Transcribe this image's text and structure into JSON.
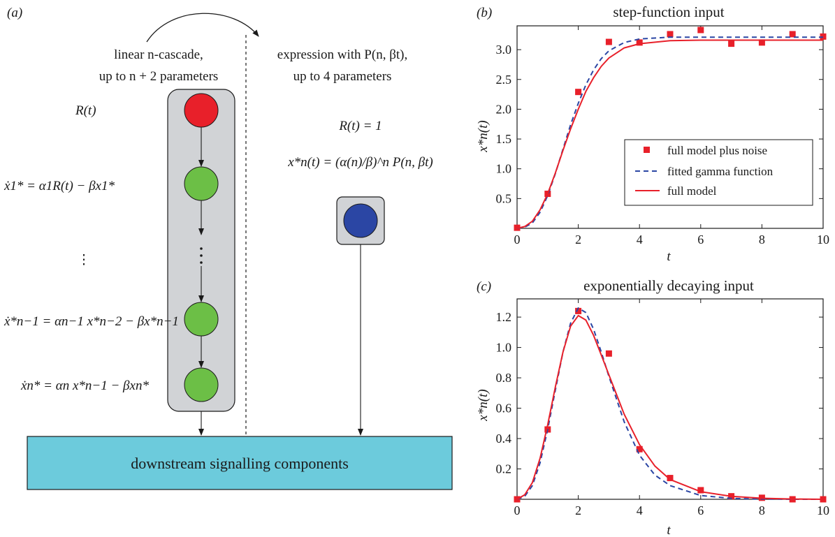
{
  "diagram": {
    "panel_label": "(a)",
    "left_header": [
      "linear n-cascade,",
      "up to n + 2 parameters"
    ],
    "right_header": [
      "expression with P(n, βt),",
      "up to 4 parameters"
    ],
    "input_label": "R(t)",
    "equations": {
      "eq1": "ẋ1* = α1R(t) − βx1*",
      "ellipsis": "⋮",
      "eq_n_minus_1": "ẋ*n−1 = αn−1 x*n−2 − βx*n−1",
      "eq_n": "ẋn* = αn x*n−1 − βxn*"
    },
    "right_equations": {
      "r_of_t": "R(t) = 1",
      "solution": "x*n(t) = (α(n)/β)^n P(n, βt)"
    },
    "downstream_label": "downstream signalling components",
    "colors": {
      "input_node": "#e8202a",
      "cascade_node": "#6cbf46",
      "output_node": "#2b46a4",
      "cascade_box": "#d1d3d6",
      "downstream": "#6ccbdc"
    }
  },
  "chart_data": [
    {
      "panel_label": "(b)",
      "type": "line",
      "title": "step-function input",
      "xlabel": "t",
      "ylabel": "x*n(t)",
      "xlim": [
        0,
        10
      ],
      "ylim": [
        0,
        3.4
      ],
      "xticks": [
        0,
        2,
        4,
        6,
        8,
        10
      ],
      "yticks": [
        0.5,
        1.0,
        1.5,
        2.0,
        2.5,
        3.0
      ],
      "ytick_labels": [
        "0.5",
        "1.0",
        "1.5",
        "2.0",
        "2.5",
        "3.0"
      ],
      "legend_position": "center-right",
      "series": [
        {
          "name": "full model plus noise",
          "style": "markers",
          "color": "#e8202a",
          "x": [
            0,
            1,
            2,
            3,
            4,
            5,
            6,
            7,
            8,
            9,
            10
          ],
          "y": [
            0.01,
            0.58,
            2.29,
            3.13,
            3.12,
            3.26,
            3.33,
            3.1,
            3.12,
            3.26,
            3.22
          ]
        },
        {
          "name": "fitted gamma function",
          "style": "dashed",
          "color": "#2b46a4",
          "x": [
            0,
            0.25,
            0.5,
            0.75,
            1,
            1.25,
            1.5,
            1.75,
            2,
            2.25,
            2.5,
            2.75,
            3,
            3.5,
            4,
            5,
            6,
            7,
            8,
            9,
            10
          ],
          "y": [
            0,
            0.02,
            0.09,
            0.27,
            0.55,
            0.92,
            1.33,
            1.74,
            2.1,
            2.41,
            2.66,
            2.85,
            2.98,
            3.12,
            3.18,
            3.21,
            3.21,
            3.21,
            3.21,
            3.21,
            3.21
          ]
        },
        {
          "name": "full model",
          "style": "solid",
          "color": "#e8202a",
          "x": [
            0,
            0.25,
            0.5,
            0.75,
            1,
            1.25,
            1.5,
            1.75,
            2,
            2.25,
            2.5,
            2.75,
            3,
            3.5,
            4,
            5,
            6,
            7,
            8,
            9,
            10
          ],
          "y": [
            0,
            0.03,
            0.12,
            0.31,
            0.58,
            0.93,
            1.31,
            1.67,
            2.0,
            2.3,
            2.53,
            2.72,
            2.86,
            3.03,
            3.1,
            3.15,
            3.16,
            3.16,
            3.16,
            3.16,
            3.16
          ]
        }
      ]
    },
    {
      "panel_label": "(c)",
      "type": "line",
      "title": "exponentially decaying input",
      "xlabel": "t",
      "ylabel": "x*n(t)",
      "xlim": [
        0,
        10
      ],
      "ylim": [
        0,
        1.32
      ],
      "xticks": [
        0,
        2,
        4,
        6,
        8,
        10
      ],
      "yticks": [
        0.2,
        0.4,
        0.6,
        0.8,
        1.0,
        1.2
      ],
      "ytick_labels": [
        "0.2",
        "0.4",
        "0.6",
        "0.8",
        "1.0",
        "1.2"
      ],
      "series": [
        {
          "name": "full model plus noise",
          "style": "markers",
          "color": "#e8202a",
          "x": [
            0,
            1,
            2,
            3,
            4,
            5,
            6,
            7,
            8,
            9,
            10
          ],
          "y": [
            0,
            0.46,
            1.24,
            0.96,
            0.33,
            0.14,
            0.06,
            0.02,
            0.01,
            0.0,
            0.0
          ]
        },
        {
          "name": "fitted gamma function",
          "style": "dashed",
          "color": "#2b46a4",
          "x": [
            0,
            0.25,
            0.5,
            0.75,
            1,
            1.25,
            1.5,
            1.75,
            2,
            2.25,
            2.5,
            2.75,
            3,
            3.5,
            4,
            4.5,
            5,
            6,
            7,
            8,
            9,
            10
          ],
          "y": [
            0,
            0.02,
            0.09,
            0.24,
            0.46,
            0.72,
            0.97,
            1.16,
            1.26,
            1.23,
            1.12,
            0.97,
            0.81,
            0.51,
            0.29,
            0.16,
            0.09,
            0.025,
            0.006,
            0.002,
            0.0,
            0.0
          ]
        },
        {
          "name": "full model",
          "style": "solid",
          "color": "#e8202a",
          "x": [
            0,
            0.25,
            0.5,
            0.75,
            1,
            1.25,
            1.5,
            1.75,
            2,
            2.25,
            2.5,
            2.75,
            3,
            3.5,
            4,
            4.5,
            5,
            6,
            7,
            8,
            9,
            10
          ],
          "y": [
            0,
            0.03,
            0.11,
            0.27,
            0.49,
            0.74,
            0.97,
            1.14,
            1.21,
            1.18,
            1.08,
            0.95,
            0.82,
            0.56,
            0.36,
            0.22,
            0.13,
            0.05,
            0.02,
            0.007,
            0.002,
            0.0
          ]
        }
      ]
    }
  ]
}
